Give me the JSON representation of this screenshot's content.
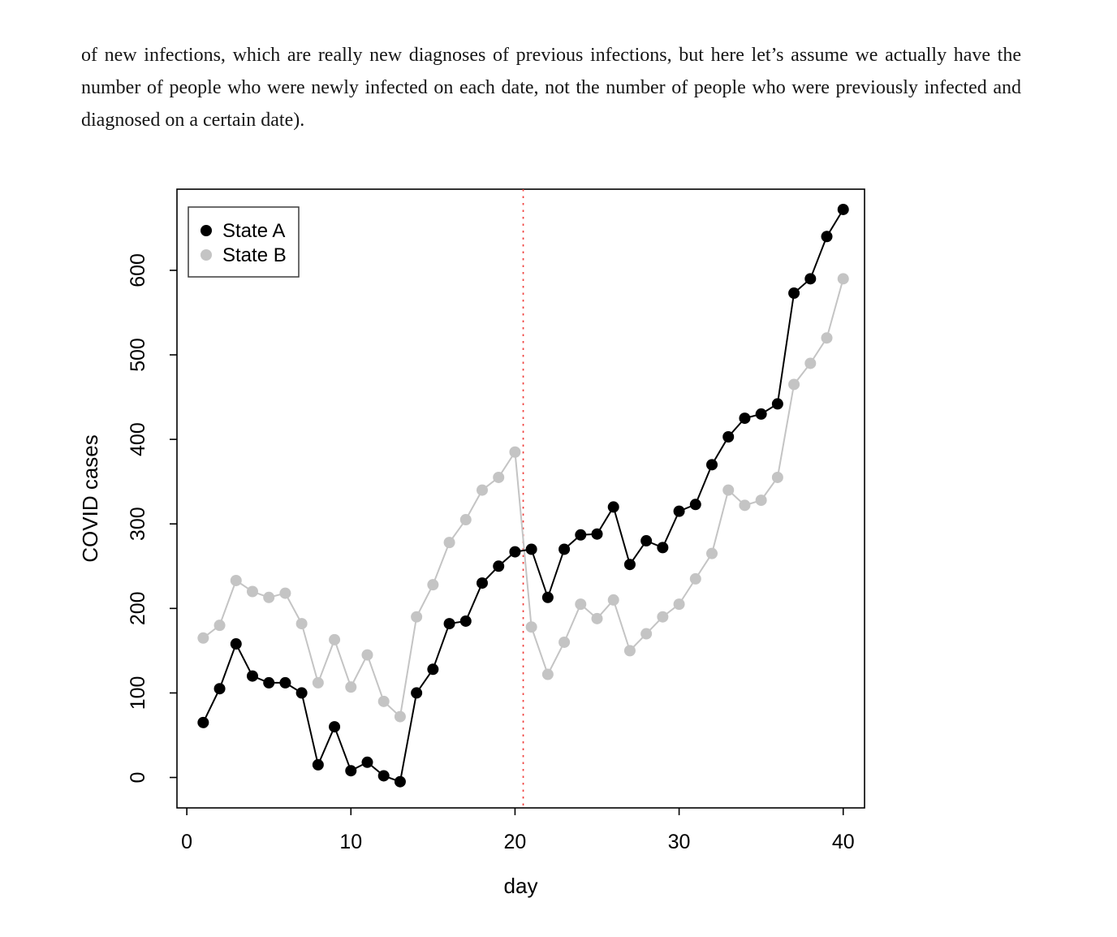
{
  "page": {
    "paragraph": "of new infections, which are really new diagnoses of previous infections, but here let’s assume we actually have the number of people who were newly infected on each date, not the number of people who were previously infected and diagnosed on a certain date)."
  },
  "chart_data": {
    "type": "line",
    "title": "",
    "xlabel": "day",
    "ylabel": "COVID cases",
    "xlim": [
      -0.6,
      41.3
    ],
    "ylim": [
      -36,
      696
    ],
    "xticks": [
      0,
      10,
      20,
      30,
      40
    ],
    "yticks": [
      0,
      100,
      200,
      300,
      400,
      500,
      600
    ],
    "grid": false,
    "legend_position": "topleft",
    "vline": {
      "x": 20.5,
      "color": "#f0413e",
      "style": "dotted"
    },
    "x": [
      1,
      2,
      3,
      4,
      5,
      6,
      7,
      8,
      9,
      10,
      11,
      12,
      13,
      14,
      15,
      16,
      17,
      18,
      19,
      20,
      21,
      22,
      23,
      24,
      25,
      26,
      27,
      28,
      29,
      30,
      31,
      32,
      33,
      34,
      35,
      36,
      37,
      38,
      39,
      40
    ],
    "series": [
      {
        "name": "State A",
        "color": "#000000",
        "values": [
          65,
          105,
          158,
          120,
          112,
          112,
          100,
          15,
          60,
          8,
          18,
          2,
          -5,
          100,
          128,
          182,
          185,
          230,
          250,
          267,
          270,
          213,
          270,
          287,
          288,
          320,
          252,
          280,
          272,
          315,
          323,
          370,
          403,
          425,
          430,
          442,
          573,
          590,
          640,
          672
        ]
      },
      {
        "name": "State B",
        "color": "#c4c4c4",
        "values": [
          165,
          180,
          233,
          220,
          213,
          218,
          182,
          112,
          163,
          107,
          145,
          90,
          72,
          190,
          228,
          278,
          305,
          340,
          355,
          385,
          178,
          122,
          160,
          205,
          188,
          210,
          150,
          170,
          190,
          205,
          235,
          265,
          340,
          322,
          328,
          355,
          465,
          490,
          520,
          590
        ]
      }
    ]
  }
}
